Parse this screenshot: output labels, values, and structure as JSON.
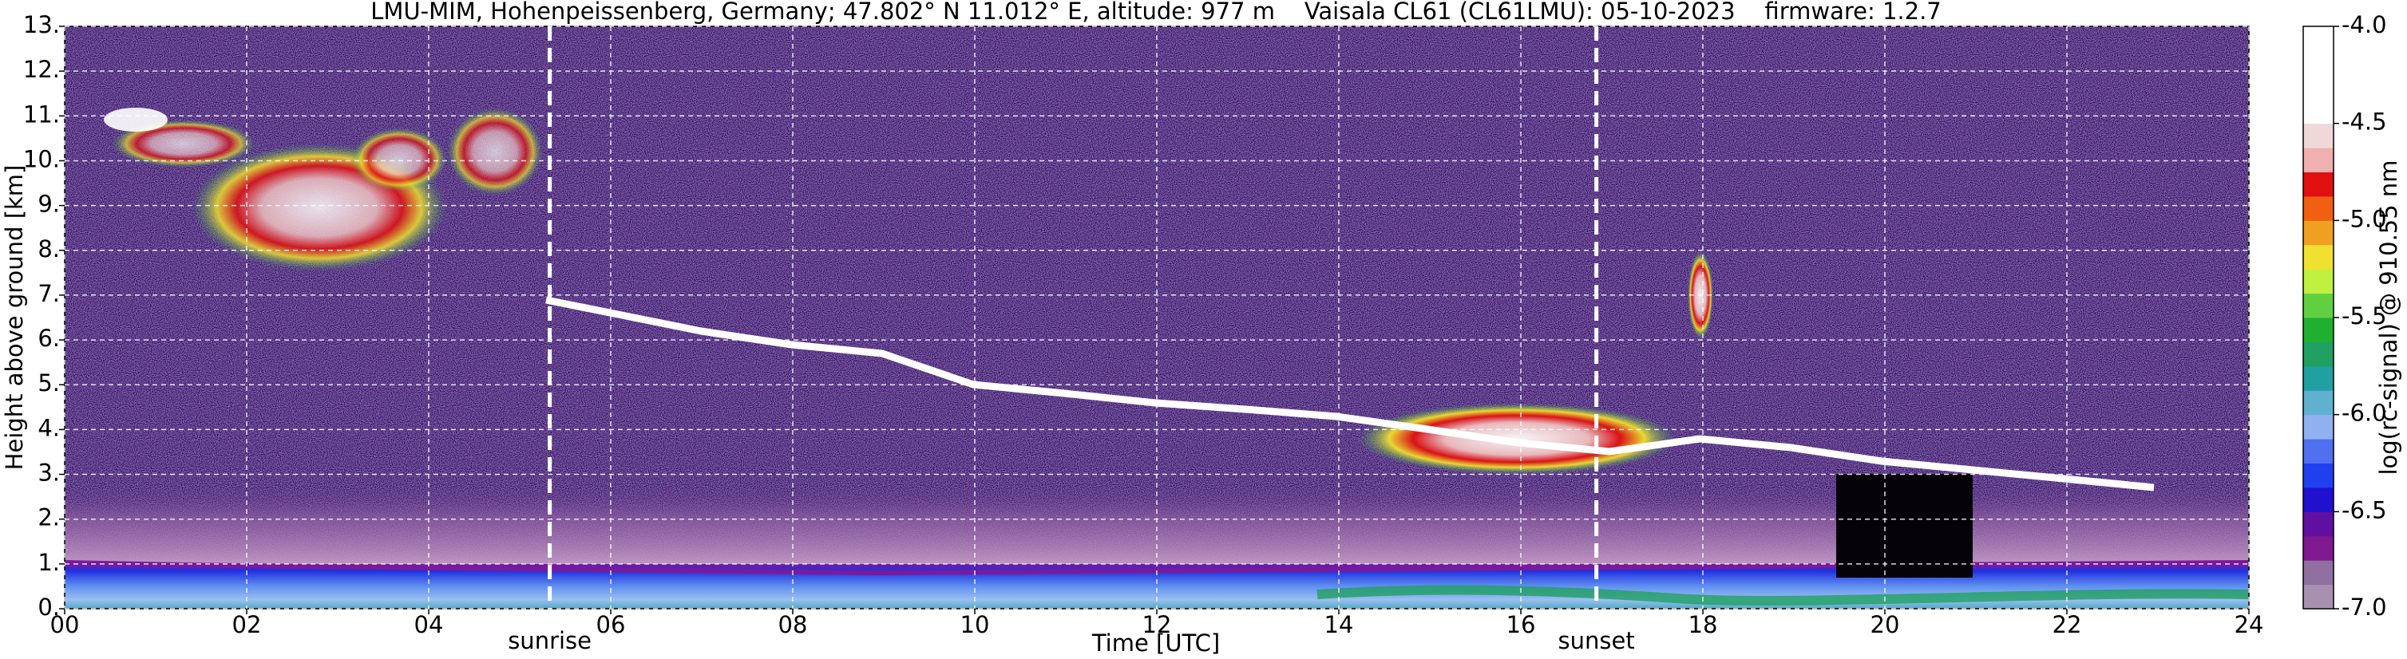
{
  "chart_data": {
    "type": "heatmap",
    "title": "LMU-MIM, Hohenpeissenberg, Germany; 47.802° N 11.012° E, altitude: 977 m    Vaisala CL61 (CL61LMU): 05-10-2023    firmware: 1.2.7",
    "x_label": "Time [UTC]",
    "y_label": "Height above ground [km]",
    "xlim": [
      0,
      24
    ],
    "xticks": [
      {
        "value": 0,
        "label": "00"
      },
      {
        "value": 2,
        "label": "02"
      },
      {
        "value": 4,
        "label": "04"
      },
      {
        "value": 6,
        "label": "06"
      },
      {
        "value": 8,
        "label": "08"
      },
      10,
      12,
      14,
      16,
      18,
      20,
      22,
      24
    ],
    "ylim": [
      0,
      13
    ],
    "yticks": [
      {
        "value": 0,
        "label": "0."
      },
      {
        "value": 1,
        "label": "1."
      },
      {
        "value": 2,
        "label": "2."
      },
      {
        "value": 3,
        "label": "3."
      },
      {
        "value": 4,
        "label": "4."
      },
      {
        "value": 5,
        "label": "5."
      },
      {
        "value": 6,
        "label": "6."
      },
      {
        "value": 7,
        "label": "7."
      },
      {
        "value": 8,
        "label": "8."
      },
      {
        "value": 9,
        "label": "9."
      },
      {
        "value": 10,
        "label": "10."
      },
      {
        "value": 11,
        "label": "11."
      },
      {
        "value": 12,
        "label": "12."
      },
      {
        "value": 13,
        "label": "13."
      }
    ],
    "grid": true,
    "annotations": [
      {
        "label": "sunrise",
        "x": 5.33
      },
      {
        "label": "sunset",
        "x": 16.83
      }
    ],
    "colorbar": {
      "label": "log(rc-signal) @ 910.55 nm",
      "lim": [
        -7.0,
        -4.0
      ],
      "ticks": [
        {
          "value": -4.0,
          "label": "-4.0"
        },
        -4.5,
        {
          "value": -5.0,
          "label": "-5.0"
        },
        -5.5,
        {
          "value": -6.0,
          "label": "-6.0"
        },
        -6.5,
        {
          "value": -7.0,
          "label": "-7.0"
        }
      ],
      "colors": [
        "#a890b0",
        "#9070a0",
        "#801890",
        "#6010a0",
        "#2010d0",
        "#2040f0",
        "#5070f0",
        "#90b0f0",
        "#60b0d0",
        "#20a0a0",
        "#20a060",
        "#20b030",
        "#60d040",
        "#c0f040",
        "#f0e030",
        "#f0a020",
        "#f06010",
        "#e01010",
        "#f0b0b0",
        "#f0d8d8",
        "#ffffff",
        "#ffffff",
        "#ffffff",
        "#ffffff"
      ]
    }
  }
}
